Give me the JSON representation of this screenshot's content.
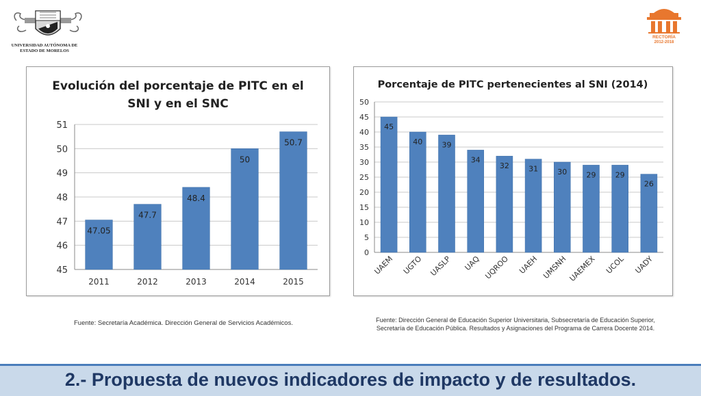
{
  "header": {
    "university_name_line1": "UNIVERSIDAD AUTÓNOMA DE",
    "university_name_line2": "ESTADO DE MORELOS",
    "rectoria_line1": "RECTORÍA",
    "rectoria_line2": "2012-2018"
  },
  "colors": {
    "bar": "#4f81bd",
    "bar_edge": "#3d6ea8",
    "footer_bg": "#c9d9ea",
    "footer_text": "#1f3864",
    "footer_line": "#4a7dbb",
    "logo_orange": "#e8772e"
  },
  "icons": {
    "left_logo": "university-crest-icon",
    "right_logo": "rectoria-building-icon"
  },
  "chart_data": [
    {
      "type": "bar",
      "title_lines": [
        "Evolución del porcentaje de PITC en el",
        "SNI y en el SNC"
      ],
      "categories": [
        "2011",
        "2012",
        "2013",
        "2014",
        "2015"
      ],
      "values": [
        47.05,
        47.7,
        48.4,
        50,
        50.7
      ],
      "value_labels": [
        "47.05",
        "47.7",
        "48.4",
        "50",
        "50.7"
      ],
      "ylim": [
        45,
        51
      ],
      "yticks": [
        "45",
        "46",
        "47",
        "48",
        "49",
        "50",
        "51"
      ],
      "grid": true,
      "legend": "none"
    },
    {
      "type": "bar",
      "title": "Porcentaje de PITC pertenecientes al SNI (2014)",
      "categories": [
        "UAEM",
        "UGTO",
        "UASLP",
        "UAQ",
        "UQROO",
        "UAEH",
        "UMSNH",
        "UAEMEX",
        "UCOL",
        "UADY"
      ],
      "values": [
        45,
        40,
        39,
        34,
        32,
        31,
        30,
        29,
        29,
        26
      ],
      "value_labels": [
        "45",
        "40",
        "39",
        "34",
        "32",
        "31",
        "30",
        "29",
        "29",
        "26"
      ],
      "ylim": [
        0,
        50
      ],
      "yticks": [
        "0",
        "5",
        "10",
        "15",
        "20",
        "25",
        "30",
        "35",
        "40",
        "45",
        "50"
      ],
      "grid": true,
      "legend": "none"
    }
  ],
  "sources": {
    "left": "Fuente: Secretaría Académica. Dirección General de Servicios Académicos.",
    "right_line1": "Fuente: Dirección General de Educación Superior Universitaria, Subsecretaría de Educación Superior,",
    "right_line2": "Secretaría de Educación Pública. Resultados y Asignaciones del Programa de Carrera Docente 2014."
  },
  "footer": {
    "title": "2.- Propuesta de nuevos indicadores de impacto y de resultados."
  }
}
